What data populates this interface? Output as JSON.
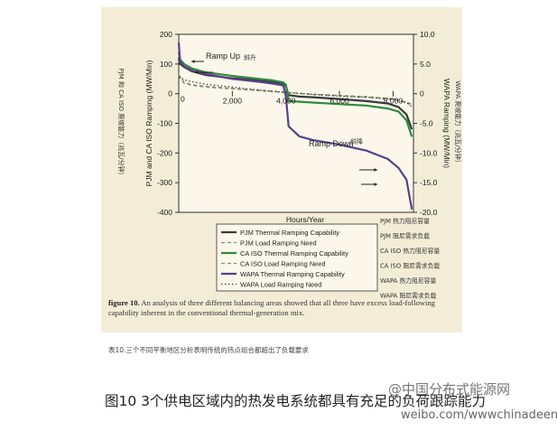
{
  "chart_data": {
    "type": "line",
    "left_axis_label": "PJM and CA ISO Ramping (MW/Min)",
    "left_axis_note": "PJM 和 CA ISO 爬坡能力（兆瓦/分钟）",
    "right_axis_label": "WAPA Ramping (MW/Min)",
    "right_axis_note": "WAPA 爬坡能力（兆瓦/分钟）",
    "xlabel": "Hours/Year",
    "xlim": [
      0,
      8760
    ],
    "x_ticks": [
      "2,000",
      "4,000",
      "6,000",
      "8,000"
    ],
    "ylim_left": [
      -400,
      200
    ],
    "left_ticks": [
      "200",
      "100",
      "0",
      "-100",
      "-200",
      "-300",
      "-400"
    ],
    "ylim_right": [
      -20,
      10
    ],
    "right_ticks": [
      "10.0",
      "5.0",
      "0",
      "-5.0",
      "-10.0",
      "-15.0",
      "-20.0"
    ],
    "annotations": [
      {
        "text": "Ramp Up",
        "cn": "斜升"
      },
      {
        "text": "Ramp Down",
        "cn": "斜降"
      }
    ],
    "series": [
      {
        "name": "PJM Thermal Ramping Capability",
        "cn": "PJM 热力阻尼容量",
        "axis": "left",
        "color": "#3a3a3a",
        "style": "solid",
        "x": [
          0,
          50,
          200,
          500,
          1000,
          2000,
          3000,
          3500,
          3900,
          4000,
          4100,
          4500,
          5000,
          6000,
          7000,
          7800,
          8200,
          8500,
          8700
        ],
        "y": [
          120,
          100,
          90,
          75,
          63,
          52,
          45,
          40,
          35,
          25,
          -5,
          -10,
          -12,
          -18,
          -25,
          -33,
          -45,
          -70,
          -120
        ]
      },
      {
        "name": "PJM Load Ramping Need",
        "cn": "PJM 阻尼需求负载",
        "axis": "left",
        "color": "#888888",
        "style": "dashed",
        "x": [
          0,
          200,
          500,
          1000,
          2000,
          3000,
          4000,
          5000,
          6000,
          7000,
          8000,
          8500,
          8700
        ],
        "y": [
          65,
          38,
          30,
          25,
          18,
          12,
          5,
          -3,
          -8,
          -12,
          -20,
          -30,
          -40
        ]
      },
      {
        "name": "CA ISO Thermal Ramping Capability",
        "cn": "CA ISO 热力阻尼容量",
        "axis": "left",
        "color": "#2e8b3e",
        "style": "solid",
        "x": [
          0,
          50,
          200,
          500,
          1000,
          2000,
          3000,
          3500,
          3900,
          4000,
          4100,
          5000,
          6000,
          7000,
          7800,
          8200,
          8500,
          8700
        ],
        "y": [
          140,
          115,
          100,
          85,
          72,
          60,
          50,
          45,
          38,
          30,
          -25,
          -30,
          -35,
          -40,
          -50,
          -60,
          -90,
          -145
        ]
      },
      {
        "name": "CA ISO Load Ramping Need",
        "cn": "CA ISO 阻尼需求负载",
        "axis": "left",
        "color": "#7a9a6a",
        "style": "dashed",
        "x": [
          0,
          200,
          500,
          1000,
          2000,
          3000,
          4000,
          5000,
          6000,
          7000,
          8000,
          8500,
          8700
        ],
        "y": [
          60,
          35,
          28,
          22,
          16,
          10,
          4,
          -2,
          -6,
          -10,
          -18,
          -28,
          -36
        ]
      },
      {
        "name": "WAPA Thermal Ramping Capability",
        "cn": "WAPA 热力阻尼容量",
        "axis": "right",
        "color": "#5a3f8c",
        "style": "solid",
        "x": [
          0,
          50,
          200,
          500,
          1000,
          2000,
          3000,
          3500,
          3900,
          4000,
          4100,
          4500,
          5000,
          6000,
          7000,
          7800,
          8200,
          8500,
          8700
        ],
        "y": [
          8.6,
          5.5,
          4.6,
          3.9,
          3.3,
          2.5,
          2.0,
          1.7,
          1.4,
          -0.5,
          -5.5,
          -7.2,
          -7.8,
          -8.6,
          -9.6,
          -11.0,
          -12.5,
          -14.5,
          -19.5
        ]
      },
      {
        "name": "WAPA Load Ramping Need",
        "cn": "WAPA 阻尼需求负载",
        "axis": "right",
        "color": "#444444",
        "style": "dotted",
        "x": [
          0,
          300,
          1000,
          2000,
          3000,
          4000,
          5000,
          6000,
          7000,
          8000,
          8500,
          8700
        ],
        "y": [
          2.8,
          2.2,
          1.6,
          1.1,
          0.6,
          0.2,
          -0.1,
          -0.4,
          -0.6,
          -0.9,
          -1.5,
          -2.2
        ]
      }
    ]
  },
  "caption": {
    "label": "figure 10.",
    "text": " An analysis of three different balancing areas showed that all three have excess load-following capability inherent in the conventional thermal-generation mix."
  },
  "cn_caption": "表10.三个不同平衡地区分析表明传统的热点组合都超出了负载要求",
  "footer": "图10 3个供电区域内的热发电系统都具有充足的负荷跟踪能力",
  "watermark": {
    "line1": "@中国分布式能源网",
    "line2": "weibo.com/wwwchinadeen"
  }
}
